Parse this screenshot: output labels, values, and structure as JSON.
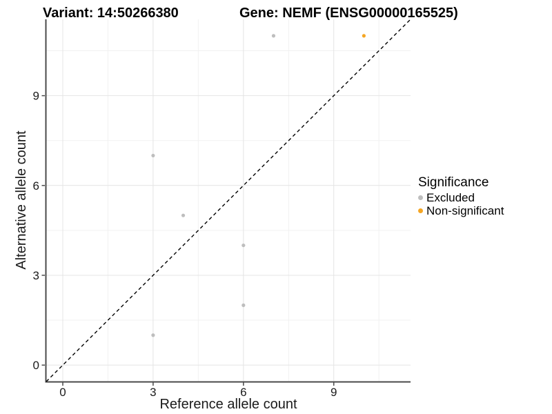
{
  "chart_data": {
    "type": "scatter",
    "title_left": "Variant: 14:50266380",
    "title_right": "Gene: NEMF (ENSG00000165525)",
    "xlabel": "Reference allele count",
    "ylabel": "Alternative allele count",
    "xlim": [
      -0.55,
      11.55
    ],
    "ylim": [
      -0.55,
      11.55
    ],
    "xticks": [
      0,
      3,
      6,
      9
    ],
    "yticks": [
      0,
      3,
      6,
      9
    ],
    "xminor": [
      1.5,
      4.5,
      7.5,
      10.5
    ],
    "yminor": [
      1.5,
      4.5,
      7.5,
      10.5
    ],
    "grid": true,
    "legend": {
      "title": "Significance",
      "position": "right"
    },
    "identity_line": {
      "style": "dashed",
      "color": "#000000"
    },
    "series": [
      {
        "name": "Excluded",
        "color": "#BEBEBE",
        "points": [
          [
            3,
            1
          ],
          [
            3,
            7
          ],
          [
            4,
            5
          ],
          [
            6,
            2
          ],
          [
            6,
            4
          ],
          [
            7,
            11
          ]
        ]
      },
      {
        "name": "Non-significant",
        "color": "#F5A623",
        "points": [
          [
            10,
            11
          ]
        ]
      }
    ],
    "colors": {
      "grid_major": "#E4E4E4",
      "grid_minor": "#F1F1F1",
      "axis_line": "#4A4A4A",
      "tick_text": "#1A1A1A"
    }
  }
}
